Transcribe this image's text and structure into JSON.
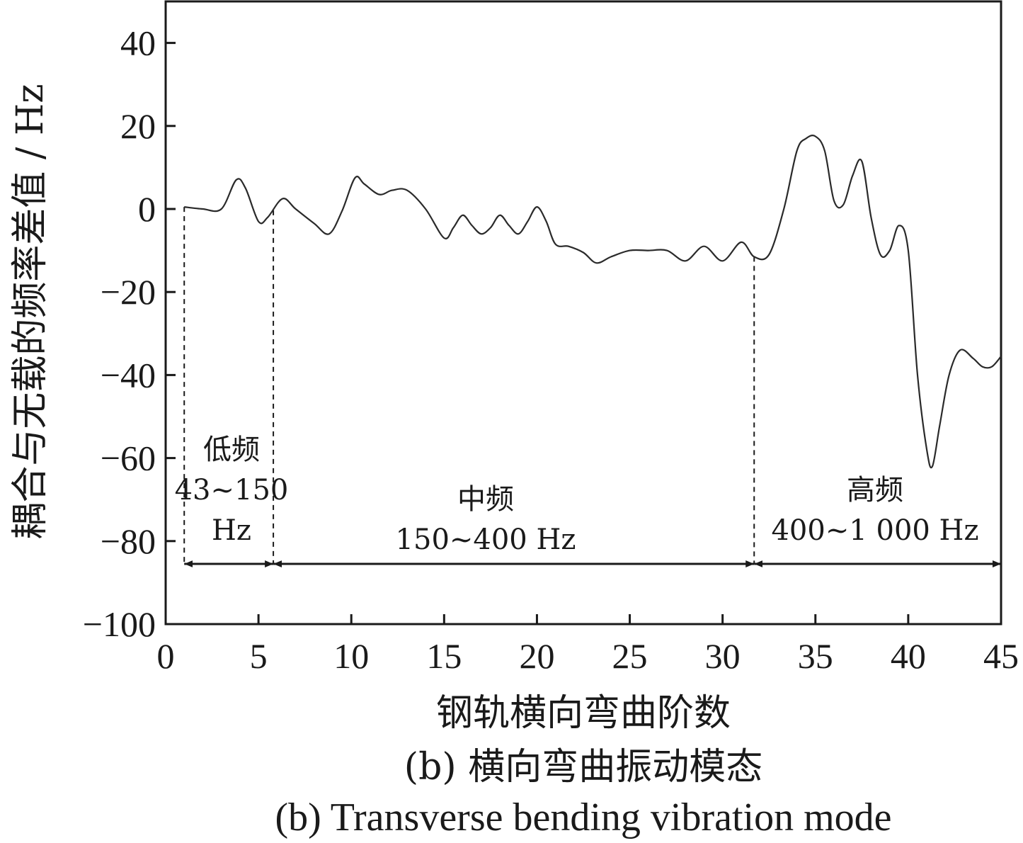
{
  "chart_data": {
    "type": "line",
    "xlabel": "钢轨横向弯曲阶数",
    "ylabel": "耦合与无载的频率差值 / Hz",
    "xlim": [
      0,
      45
    ],
    "ylim": [
      -100,
      50
    ],
    "xticks": [
      0,
      5,
      10,
      15,
      20,
      25,
      30,
      35,
      40,
      45
    ],
    "yticks": [
      40,
      20,
      0,
      -20,
      -40,
      -60,
      -80,
      -100
    ],
    "tick_labels_x": [
      "0",
      "5",
      "10",
      "15",
      "20",
      "25",
      "30",
      "35",
      "40",
      "45"
    ],
    "tick_labels_y": [
      "40",
      "20",
      "0",
      "−20",
      "−40",
      "−60",
      "−80",
      "−100"
    ],
    "grid": false,
    "legend": "none",
    "series": [
      {
        "x": [
          1,
          2,
          3,
          3.8,
          4.3,
          5,
          5.5,
          6.3,
          7,
          8,
          8.8,
          9.5,
          10.2,
          10.7,
          11.5,
          12.2,
          13,
          14,
          15,
          15.5,
          16,
          16.5,
          17,
          17.5,
          18,
          18.5,
          19,
          19.5,
          20,
          20.5,
          21,
          21.7,
          22.5,
          23.2,
          24,
          25,
          26,
          27,
          28,
          29,
          30,
          31,
          31.7,
          32.5,
          33.3,
          34,
          34.5,
          35,
          35.5,
          36,
          36.5,
          37,
          37.5,
          38,
          38.5,
          39,
          39.5,
          40,
          40.5,
          41,
          41.3,
          41.7,
          42.2,
          42.8,
          43.5,
          44,
          44.5,
          45
        ],
        "values": [
          0.5,
          0,
          0,
          7,
          5,
          -3,
          -2,
          2.5,
          0,
          -3.5,
          -6,
          -0.5,
          7.5,
          6,
          3.5,
          4.5,
          4.5,
          0,
          -7,
          -4.5,
          -1.5,
          -4,
          -6,
          -4.5,
          -1.5,
          -4,
          -6,
          -3,
          0.5,
          -3,
          -8.5,
          -9,
          -10.5,
          -13,
          -11.5,
          -10,
          -10,
          -10,
          -12.5,
          -9,
          -12.5,
          -8,
          -11.5,
          -11,
          0,
          14,
          17,
          17.5,
          14,
          2,
          1,
          8,
          11.5,
          -2,
          -11,
          -10,
          -4,
          -10,
          -40,
          -58,
          -62,
          -52,
          -40,
          -34,
          -36,
          -38,
          -38,
          -35.5
        ]
      }
    ],
    "annotations": [
      {
        "label": "低频",
        "range": "43~150",
        "unit": "Hz",
        "x_from": 1,
        "x_to": 5.8
      },
      {
        "label": "中频",
        "range": "150~400 Hz",
        "x_from": 5.8,
        "x_to": 31.7
      },
      {
        "label": "高频",
        "range": "400~1 000 Hz",
        "x_from": 31.7,
        "x_to": 45
      }
    ],
    "arrow_level": -85.5,
    "caption_cn": "(b)  横向弯曲振动模态",
    "caption_en": "(b)  Transverse bending vibration mode"
  }
}
